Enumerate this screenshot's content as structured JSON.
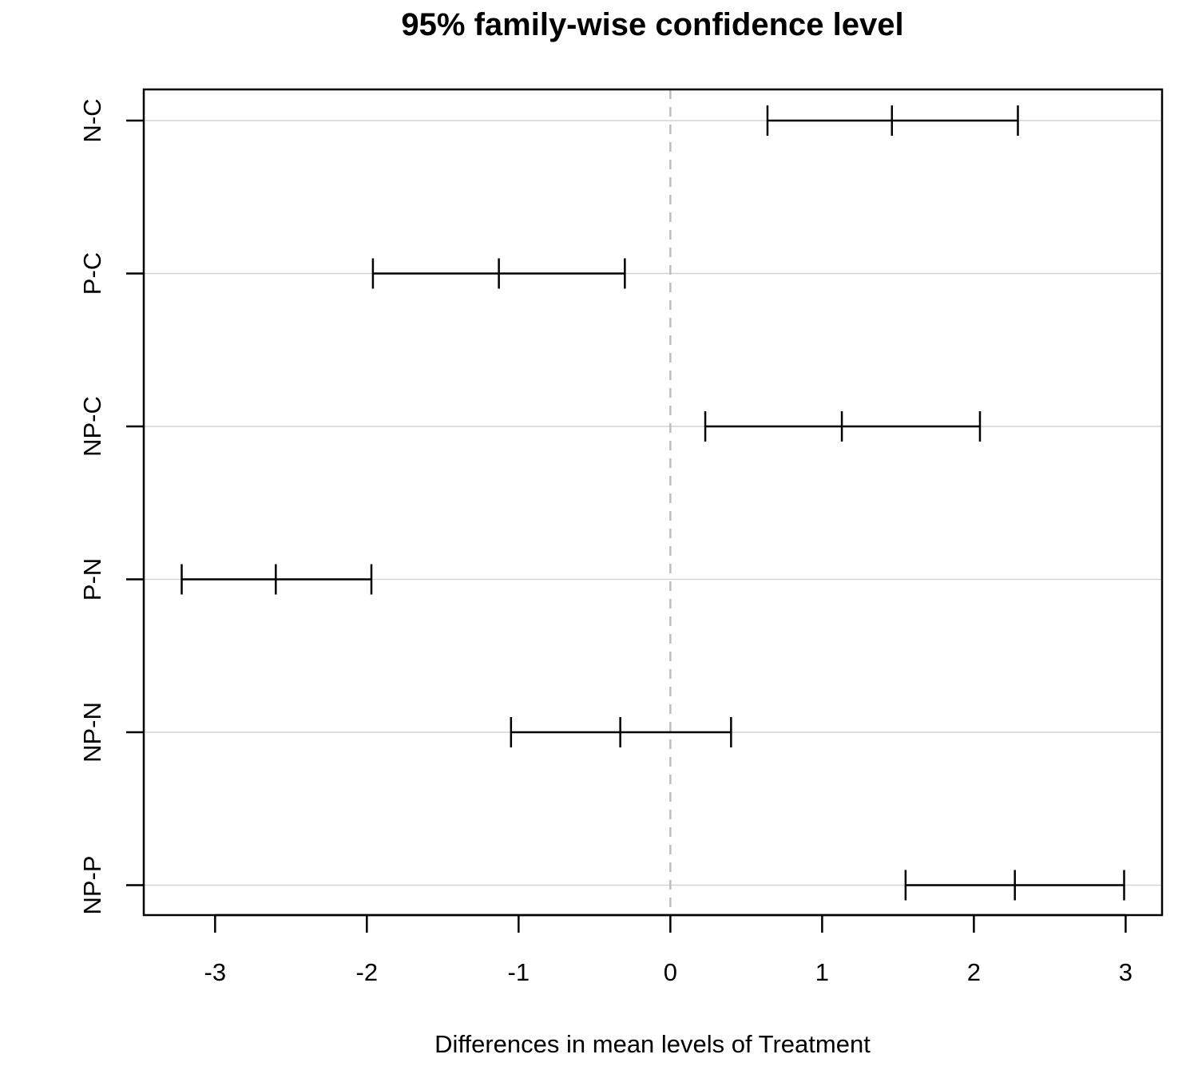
{
  "chart_data": {
    "type": "errorbar",
    "title": "95% family-wise confidence level",
    "xlabel": "Differences in mean levels of Treatment",
    "ylabel": "",
    "xlim": [
      -3.47,
      3.24
    ],
    "xticks": [
      -3,
      -2,
      -1,
      0,
      1,
      2,
      3
    ],
    "grid": "horizontal",
    "reference_line": 0,
    "comparisons": [
      {
        "label": "N-C",
        "lwr": 0.64,
        "diff": 1.46,
        "upr": 2.29
      },
      {
        "label": "P-C",
        "lwr": -1.96,
        "diff": -1.13,
        "upr": -0.3
      },
      {
        "label": "NP-C",
        "lwr": 0.23,
        "diff": 1.13,
        "upr": 2.04
      },
      {
        "label": "P-N",
        "lwr": -3.22,
        "diff": -2.6,
        "upr": -1.97
      },
      {
        "label": "NP-N",
        "lwr": -1.05,
        "diff": -0.33,
        "upr": 0.4
      },
      {
        "label": "NP-P",
        "lwr": 1.55,
        "diff": 2.27,
        "upr": 2.99
      }
    ]
  }
}
